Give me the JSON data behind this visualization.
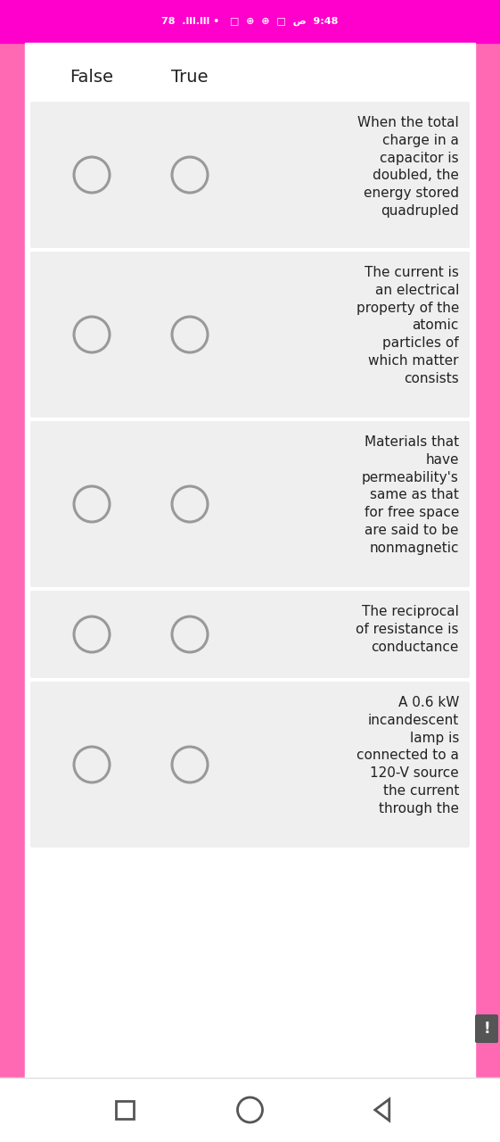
{
  "status_bar_color": "#FF00CC",
  "bg_color": "#FFFFFF",
  "side_color": "#FF69B4",
  "header_false": "False",
  "header_true": "True",
  "card_bg": "#EFEFEF",
  "card_text_color": "#222222",
  "circle_edge_color": "#999999",
  "questions": [
    "When the total\ncharge in a\ncapacitor is\ndoubled, the\nenergy stored\nquadrupled",
    "The current is\nan electrical\nproperty of the\natomic\nparticles of\nwhich matter\nconsists",
    "Materials that\nhave\npermeability's\nsame as that\nfor free space\nare said to be\nnonmagnetic",
    "The reciprocal\nof resistance is\nconductance",
    "A 0.6 kW\nincandescent\nlamp is\nconnected to a\n120-V source\nthe current\nthrough the"
  ],
  "figsize": [
    5.61,
    12.8
  ],
  "dpi": 100
}
